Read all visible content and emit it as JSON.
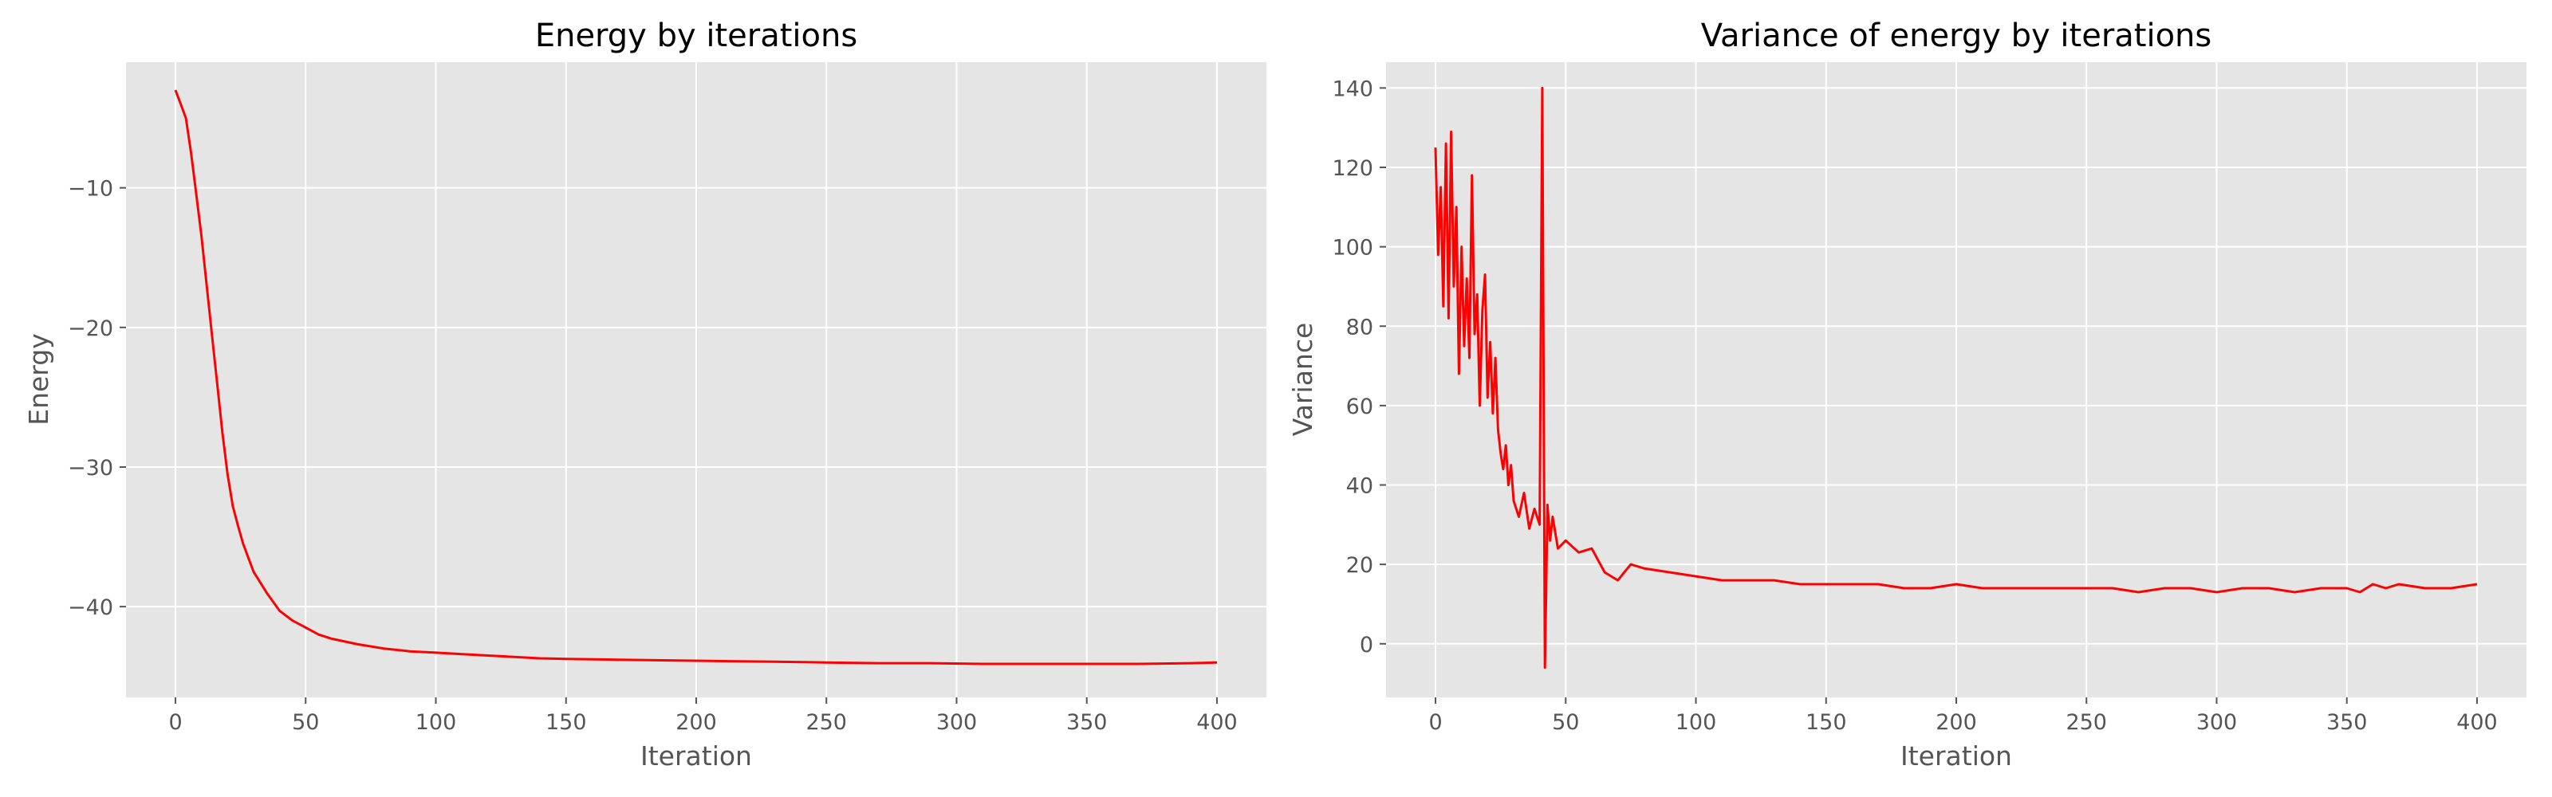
{
  "chart_data": [
    {
      "type": "line",
      "title": "Energy by iterations",
      "xlabel": "Iteration",
      "ylabel": "Energy",
      "xlim": [
        -19,
        419
      ],
      "ylim": [
        -46.5,
        -1.0
      ],
      "xticks": [
        0,
        50,
        100,
        150,
        200,
        250,
        300,
        350,
        400
      ],
      "xtick_labels": [
        "0",
        "50",
        "100",
        "150",
        "200",
        "250",
        "300",
        "350",
        "400"
      ],
      "yticks": [
        -40,
        -30,
        -20,
        -10
      ],
      "ytick_labels": [
        "−40",
        "−30",
        "−20",
        "−10"
      ],
      "grid": true,
      "legend": "none",
      "series": [
        {
          "color": "#ff0000",
          "x": [
            0,
            2,
            4,
            6,
            8,
            10,
            12,
            14,
            16,
            18,
            20,
            22,
            24,
            26,
            28,
            30,
            35,
            40,
            45,
            50,
            55,
            60,
            70,
            80,
            90,
            100,
            110,
            120,
            130,
            140,
            150,
            170,
            190,
            210,
            230,
            250,
            270,
            290,
            310,
            330,
            350,
            370,
            390,
            400
          ],
          "y": [
            -3.0,
            -4.0,
            -5.0,
            -7.5,
            -10.5,
            -13.5,
            -17.0,
            -20.5,
            -24.0,
            -27.5,
            -30.5,
            -32.8,
            -34.2,
            -35.5,
            -36.5,
            -37.5,
            -39.0,
            -40.3,
            -41.0,
            -41.5,
            -42.0,
            -42.3,
            -42.7,
            -43.0,
            -43.2,
            -43.3,
            -43.4,
            -43.5,
            -43.6,
            -43.7,
            -43.75,
            -43.8,
            -43.85,
            -43.9,
            -43.95,
            -44.0,
            -44.05,
            -44.05,
            -44.1,
            -44.1,
            -44.1,
            -44.1,
            -44.05,
            -44.0
          ]
        }
      ]
    },
    {
      "type": "line",
      "title": "Variance of energy by iterations",
      "xlabel": "Iteration",
      "ylabel": "Variance",
      "xlim": [
        -19,
        419
      ],
      "ylim": [
        -13.5,
        146.5
      ],
      "xticks": [
        0,
        50,
        100,
        150,
        200,
        250,
        300,
        350,
        400
      ],
      "xtick_labels": [
        "0",
        "50",
        "100",
        "150",
        "200",
        "250",
        "300",
        "350",
        "400"
      ],
      "yticks": [
        0,
        20,
        40,
        60,
        80,
        100,
        120,
        140
      ],
      "ytick_labels": [
        "0",
        "20",
        "40",
        "60",
        "80",
        "100",
        "120",
        "140"
      ],
      "grid": true,
      "legend": "none",
      "series": [
        {
          "color": "#ff0000",
          "x": [
            0,
            1,
            2,
            3,
            4,
            5,
            6,
            7,
            8,
            9,
            10,
            11,
            12,
            13,
            14,
            15,
            16,
            17,
            18,
            19,
            20,
            21,
            22,
            23,
            24,
            25,
            26,
            27,
            28,
            29,
            30,
            32,
            34,
            36,
            38,
            40,
            41,
            42,
            43,
            44,
            45,
            47,
            50,
            55,
            60,
            65,
            70,
            75,
            80,
            90,
            100,
            110,
            120,
            130,
            140,
            150,
            160,
            170,
            180,
            190,
            200,
            210,
            220,
            230,
            240,
            250,
            260,
            270,
            280,
            290,
            300,
            310,
            320,
            330,
            340,
            350,
            355,
            360,
            365,
            370,
            380,
            390,
            400
          ],
          "y": [
            125,
            98,
            115,
            85,
            126,
            82,
            129,
            90,
            110,
            68,
            100,
            75,
            92,
            72,
            118,
            78,
            88,
            60,
            84,
            93,
            62,
            76,
            58,
            72,
            54,
            48,
            44,
            50,
            40,
            45,
            36,
            32,
            38,
            29,
            34,
            30,
            140,
            -6,
            35,
            26,
            32,
            24,
            26,
            23,
            24,
            18,
            16,
            20,
            19,
            18,
            17,
            16,
            16,
            16,
            15,
            15,
            15,
            15,
            14,
            14,
            15,
            14,
            14,
            14,
            14,
            14,
            14,
            13,
            14,
            14,
            13,
            14,
            14,
            13,
            14,
            14,
            13,
            15,
            14,
            15,
            14,
            14,
            15
          ]
        }
      ]
    }
  ]
}
